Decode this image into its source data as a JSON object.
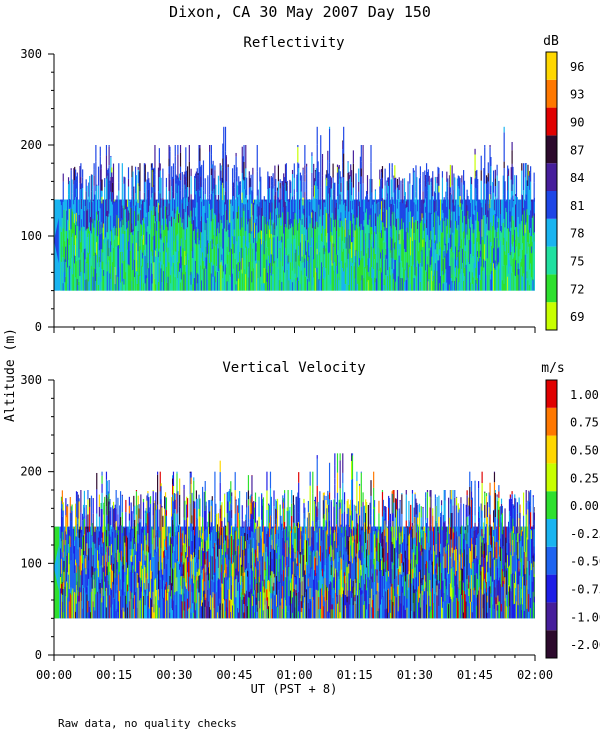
{
  "header": {
    "title": "Dixon, CA 30 May 2007  Day 150",
    "y_axis_label": "Altitude (m)",
    "x_axis_label": "UT  (PST + 8)",
    "footnote": "Raw data, no quality checks"
  },
  "colors": {
    "background": "#ffffff",
    "axis": "#000000"
  },
  "chart_data": [
    {
      "type": "heatmap",
      "title": "Reflectivity",
      "colorbar_unit": "dB",
      "xlim_minutes": [
        0,
        120
      ],
      "ylim": [
        0,
        300
      ],
      "ylabel": "Altitude (m)",
      "xlabel": "UT  (PST + 8)",
      "x_ticks": [
        "00:00",
        "00:15",
        "00:30",
        "00:45",
        "01:00",
        "01:15",
        "01:30",
        "01:45",
        "02:00"
      ],
      "y_ticks": [
        "0",
        "100",
        "200",
        "300"
      ],
      "colorbar_levels": [
        "69",
        "72",
        "75",
        "78",
        "81",
        "84",
        "87",
        "90",
        "93",
        "96"
      ],
      "colorbar_colors": [
        "#c8ff00",
        "#2ee02e",
        "#20e0a0",
        "#19b4f0",
        "#1e46e6",
        "#461e9b",
        "#2d0a2d",
        "#e00000",
        "#ff7800",
        "#ffd700"
      ],
      "data_altitude_range_m": [
        40,
        220
      ],
      "data_altitude_typical_top_m": 140,
      "minutes": [
        0,
        5,
        10,
        15,
        20,
        25,
        30,
        35,
        40,
        45,
        50,
        55,
        60,
        65,
        70,
        75,
        80,
        85,
        90,
        95,
        100,
        105,
        110,
        115,
        120
      ],
      "echo_top_m": [
        140,
        180,
        200,
        180,
        180,
        200,
        200,
        200,
        220,
        200,
        200,
        180,
        200,
        220,
        220,
        200,
        180,
        180,
        180,
        180,
        200,
        200,
        220,
        180,
        200
      ]
    },
    {
      "type": "heatmap",
      "title": "Vertical Velocity",
      "colorbar_unit": "m/s",
      "xlim_minutes": [
        0,
        120
      ],
      "ylim": [
        0,
        300
      ],
      "ylabel": "Altitude (m)",
      "xlabel": "UT  (PST + 8)",
      "x_ticks": [
        "00:00",
        "00:15",
        "00:30",
        "00:45",
        "01:00",
        "01:15",
        "01:30",
        "01:45",
        "02:00"
      ],
      "y_ticks": [
        "0",
        "100",
        "200",
        "300"
      ],
      "colorbar_levels": [
        "-2.00",
        "-1.00",
        "-0.75",
        "-0.50",
        "-0.25",
        "0.00",
        "0.25",
        "0.50",
        "0.75",
        "1.00"
      ],
      "colorbar_colors": [
        "#2d0a2d",
        "#461e9b",
        "#1e1ee6",
        "#1e64f0",
        "#19b4f0",
        "#2ee02e",
        "#c8ff00",
        "#ffd700",
        "#ff7800",
        "#e00000"
      ],
      "data_altitude_range_m": [
        40,
        220
      ],
      "data_altitude_typical_top_m": 140
    }
  ]
}
